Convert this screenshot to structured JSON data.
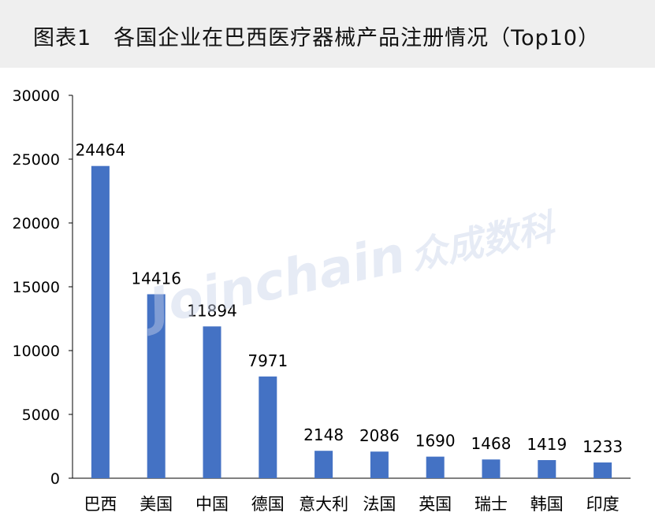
{
  "header": {
    "title": "图表1　各国企业在巴西医疗器械产品注册情况（Top10）"
  },
  "watermark": {
    "latin": "Joinchain",
    "chinese": "众成数科"
  },
  "chart_data": {
    "type": "bar",
    "title": "",
    "xlabel": "",
    "ylabel": "",
    "categories": [
      "巴西",
      "美国",
      "中国",
      "德国",
      "意大利",
      "法国",
      "英国",
      "瑞士",
      "韩国",
      "印度"
    ],
    "values": [
      24464,
      14416,
      11894,
      7971,
      2148,
      2086,
      1690,
      1468,
      1419,
      1233
    ],
    "ylim": [
      0,
      30000
    ],
    "yticks": [
      0,
      5000,
      10000,
      15000,
      20000,
      25000,
      30000
    ],
    "grid": false,
    "bar_color": "#4472C4",
    "data_labels": true
  }
}
